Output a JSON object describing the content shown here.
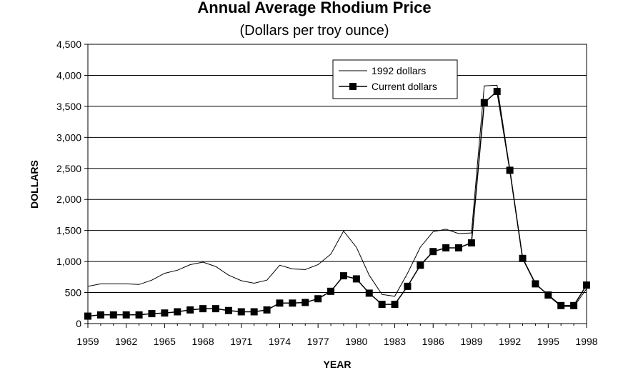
{
  "chart_data": {
    "type": "line",
    "title": "Annual Average Rhodium Price",
    "subtitle": "(Dollars per troy ounce)",
    "xlabel": "YEAR",
    "ylabel": "DOLLARS",
    "xlim": [
      1959,
      1998
    ],
    "ylim": [
      0,
      4500
    ],
    "x_ticks": [
      1959,
      1962,
      1965,
      1968,
      1971,
      1974,
      1977,
      1980,
      1983,
      1986,
      1989,
      1992,
      1995,
      1998
    ],
    "y_ticks": [
      0,
      500,
      1000,
      1500,
      2000,
      2500,
      3000,
      3500,
      4000,
      4500
    ],
    "y_tick_labels": [
      "0",
      "500",
      "1,000",
      "1,500",
      "2,000",
      "2,500",
      "3,000",
      "3,500",
      "4,000",
      "4,500"
    ],
    "grid": true,
    "legend_position": "top-right",
    "x": [
      1959,
      1960,
      1961,
      1962,
      1963,
      1964,
      1965,
      1966,
      1967,
      1968,
      1969,
      1970,
      1971,
      1972,
      1973,
      1974,
      1975,
      1976,
      1977,
      1978,
      1979,
      1980,
      1981,
      1982,
      1983,
      1984,
      1985,
      1986,
      1987,
      1988,
      1989,
      1990,
      1991,
      1992,
      1993,
      1994,
      1995,
      1996,
      1997,
      1998
    ],
    "series": [
      {
        "name": "1992 dollars",
        "marker": "none",
        "values": [
          600,
          640,
          640,
          640,
          630,
          700,
          810,
          860,
          950,
          990,
          920,
          780,
          690,
          650,
          700,
          940,
          880,
          870,
          950,
          1120,
          1490,
          1230,
          780,
          470,
          440,
          810,
          1230,
          1480,
          1520,
          1450,
          1460,
          3830,
          3840,
          2480,
          1060,
          650,
          450,
          280,
          270,
          560
        ]
      },
      {
        "name": "Current dollars",
        "marker": "square",
        "values": [
          120,
          140,
          140,
          140,
          140,
          160,
          170,
          190,
          220,
          240,
          240,
          210,
          190,
          190,
          220,
          330,
          330,
          340,
          400,
          520,
          770,
          720,
          490,
          310,
          310,
          600,
          940,
          1160,
          1220,
          1220,
          1300,
          3560,
          3740,
          2470,
          1050,
          640,
          460,
          290,
          290,
          620
        ]
      }
    ]
  }
}
